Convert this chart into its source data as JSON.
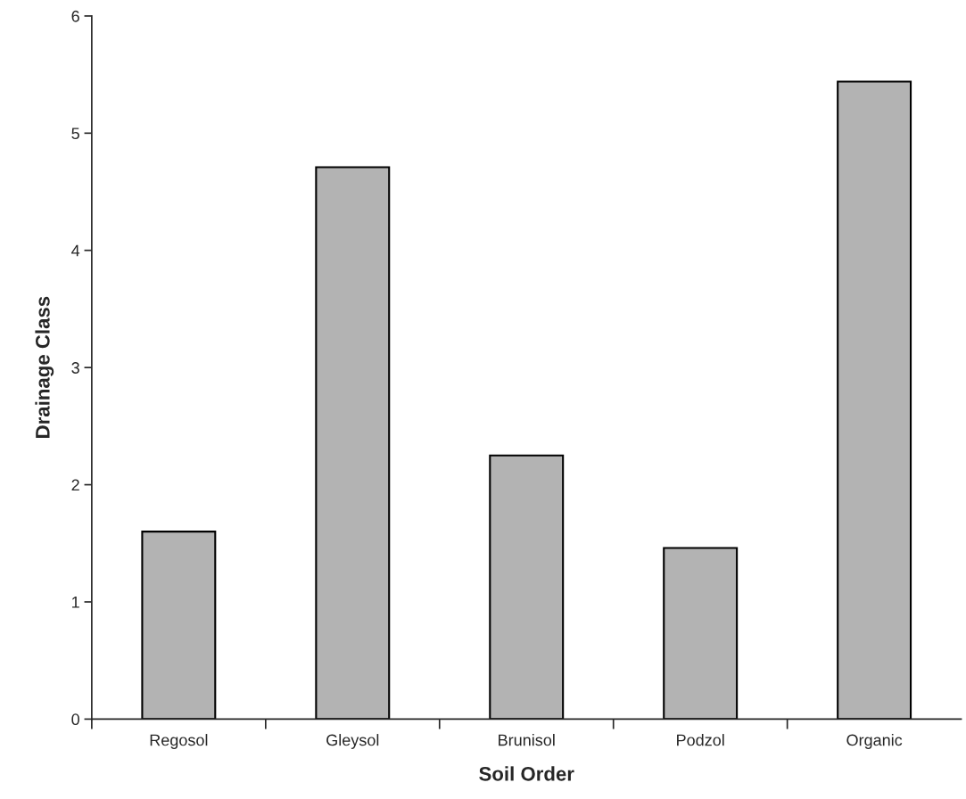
{
  "chart_data": {
    "type": "bar",
    "xlabel": "Soil Order",
    "ylabel": "Drainage Class",
    "categories": [
      "Regosol",
      "Gleysol",
      "Brunisol",
      "Podzol",
      "Organic"
    ],
    "values": [
      1.6,
      4.71,
      2.25,
      1.46,
      5.44
    ],
    "color": "#b3b3b3",
    "ylim": [
      0,
      6
    ],
    "yticks": [
      0,
      1,
      2,
      3,
      4,
      5,
      6
    ],
    "grid": false,
    "legend": false
  }
}
